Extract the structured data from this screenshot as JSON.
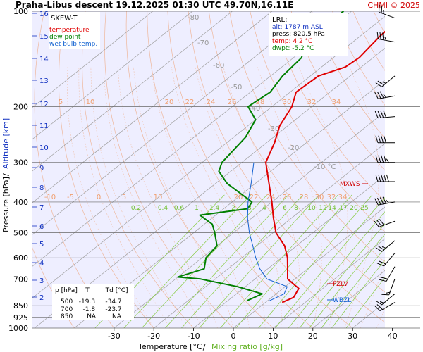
{
  "header": {
    "title": "Praha-Libus   descent   19.12.2025 01:30 UTC  49.70N,16.11E",
    "copyright": "CHMI © 2025"
  },
  "legend": {
    "title": "SKEW-T",
    "items": [
      {
        "label": "temperature",
        "color": "#e00000"
      },
      {
        "label": "dew point",
        "color": "#008000"
      },
      {
        "label": "wet bulb temp.",
        "color": "#1060d0"
      }
    ]
  },
  "lrl": {
    "title": "LRL:",
    "alt": "alt: 1787 m ASL",
    "press": "press: 820.5 hPa",
    "temp": "temp: 4.2 °C",
    "dwpt": "dwpt: -5.2 °C"
  },
  "levels_table": {
    "header": "p [hPa]    T        Td [°C]",
    "rows": [
      "500   -19.3     -34.7",
      "700     -1.8     -23.7",
      "850       NA        NA"
    ]
  },
  "markers": {
    "mxws": "MXWS",
    "fzlv": "FZLV",
    "wbzl": "WBZL"
  },
  "axes": {
    "ylabel_left": "Pressure [hPa]",
    "ylabel_sep": "/",
    "ylabel_right": "Altitude [km]",
    "xlabel_temp": "Temperature [°C]",
    "xlabel_sep": "/",
    "xlabel_mix": "Mixing ratio [g/kg]"
  },
  "colors": {
    "temperature": "#e00000",
    "dewpoint": "#008000",
    "wetbulb": "#1060d0",
    "isotherm": "#a0a0a0",
    "dry_adiabat": "#f0a070",
    "mixing": "#88cc44",
    "plot_bg": "#eeeeff"
  },
  "chart_data": {
    "type": "line",
    "x_ticks": [
      -30,
      -20,
      -10,
      0,
      10,
      20,
      30,
      40
    ],
    "y_ticks": [
      100,
      200,
      300,
      400,
      500,
      600,
      700,
      850,
      925,
      1000
    ],
    "km_ticks": [
      16,
      15,
      14,
      13,
      12,
      11,
      10,
      9,
      8,
      7,
      6,
      5,
      4,
      3,
      2
    ],
    "skewed_isotherm_labels": [
      -80,
      -70,
      -60,
      -50,
      -40,
      -30,
      -20,
      -10
    ],
    "theta_labels_top": [
      5,
      10,
      20,
      22,
      24,
      26,
      28,
      30,
      32,
      34
    ],
    "theta_labels_mid": [
      -10,
      -5,
      0,
      5,
      10,
      20,
      22,
      24,
      26,
      28,
      30,
      32,
      34
    ],
    "mixing_labels": [
      0.2,
      0.4,
      0.6,
      1,
      1.4,
      2,
      3,
      4,
      6,
      8,
      10,
      12,
      14,
      17,
      20,
      25
    ],
    "series": [
      {
        "name": "temperature",
        "points": [
          [
            830,
            4.2
          ],
          [
            800,
            5.5
          ],
          [
            750,
            4.0
          ],
          [
            700,
            -1.8
          ],
          [
            650,
            -5.0
          ],
          [
            600,
            -8.5
          ],
          [
            550,
            -13.0
          ],
          [
            500,
            -19.3
          ],
          [
            450,
            -24.5
          ],
          [
            400,
            -30.0
          ],
          [
            350,
            -36.5
          ],
          [
            300,
            -44.0
          ],
          [
            260,
            -48.0
          ],
          [
            230,
            -52.0
          ],
          [
            200,
            -55.0
          ],
          [
            180,
            -58.5
          ],
          [
            160,
            -58.0
          ],
          [
            150,
            -54.0
          ],
          [
            140,
            -53.5
          ],
          [
            120,
            -55.0
          ],
          [
            100,
            -56.0
          ]
        ]
      },
      {
        "name": "dew point",
        "points": [
          [
            820,
            -5.2
          ],
          [
            780,
            -3.5
          ],
          [
            740,
            -12.0
          ],
          [
            700,
            -23.7
          ],
          [
            690,
            -30.0
          ],
          [
            650,
            -26.0
          ],
          [
            600,
            -29.0
          ],
          [
            550,
            -30.0
          ],
          [
            500,
            -34.7
          ],
          [
            470,
            -38.0
          ],
          [
            440,
            -44.0
          ],
          [
            420,
            -34.0
          ],
          [
            400,
            -35.0
          ],
          [
            370,
            -42.0
          ],
          [
            350,
            -47.0
          ],
          [
            320,
            -53.0
          ],
          [
            300,
            -55.0
          ],
          [
            250,
            -57.0
          ],
          [
            220,
            -60.0
          ],
          [
            200,
            -66.0
          ],
          [
            180,
            -65.0
          ],
          [
            160,
            -67.0
          ],
          [
            140,
            -68.0
          ],
          [
            120,
            -73.0
          ],
          [
            100,
            -72.0
          ]
        ]
      },
      {
        "name": "wet bulb temp.",
        "points": [
          [
            820,
            0.5
          ],
          [
            780,
            2.0
          ],
          [
            740,
            0.5
          ],
          [
            700,
            -7.0
          ],
          [
            650,
            -12.0
          ],
          [
            600,
            -16.5
          ],
          [
            550,
            -21.0
          ],
          [
            500,
            -26.0
          ],
          [
            450,
            -31.0
          ],
          [
            400,
            -36.0
          ],
          [
            350,
            -41.0
          ],
          [
            300,
            -47.0
          ]
        ]
      }
    ],
    "wind_barbs": [
      {
        "p": 105,
        "dir": 290,
        "kt": 25
      },
      {
        "p": 125,
        "dir": 280,
        "kt": 35
      },
      {
        "p": 160,
        "dir": 230,
        "kt": 25
      },
      {
        "p": 185,
        "dir": 260,
        "kt": 35
      },
      {
        "p": 215,
        "dir": 265,
        "kt": 40
      },
      {
        "p": 260,
        "dir": 270,
        "kt": 40
      },
      {
        "p": 300,
        "dir": 270,
        "kt": 45
      },
      {
        "p": 345,
        "dir": 270,
        "kt": 50
      },
      {
        "p": 400,
        "dir": 260,
        "kt": 45
      },
      {
        "p": 460,
        "dir": 250,
        "kt": 30
      },
      {
        "p": 530,
        "dir": 230,
        "kt": 25
      },
      {
        "p": 580,
        "dir": 220,
        "kt": 20
      },
      {
        "p": 640,
        "dir": 210,
        "kt": 20
      },
      {
        "p": 700,
        "dir": 200,
        "kt": 15
      },
      {
        "p": 780,
        "dir": 230,
        "kt": 15
      },
      {
        "p": 830,
        "dir": 240,
        "kt": 20
      }
    ]
  }
}
